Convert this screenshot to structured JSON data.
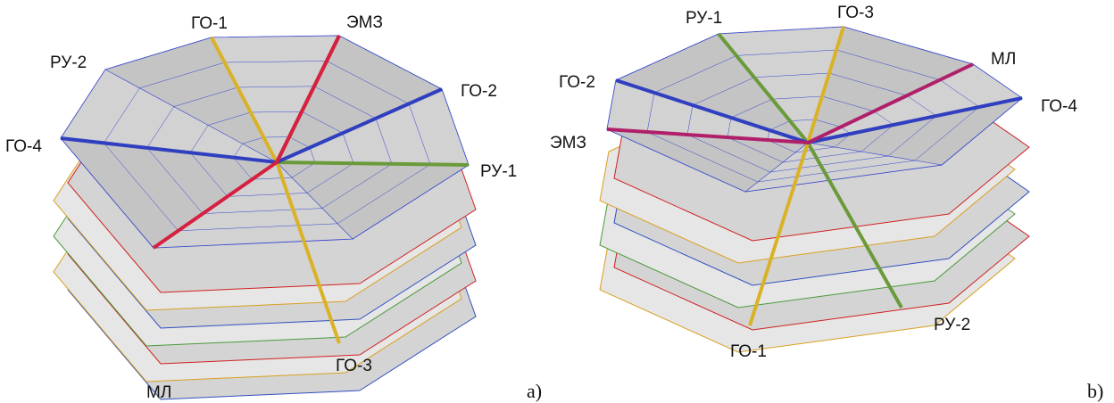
{
  "panels": [
    {
      "caption": "a)",
      "labels": [
        "ГО-1",
        "ЭМЗ",
        "РУ-2",
        "ГО-2",
        "ГО-4",
        "РУ-1",
        "МЛ",
        "ГО-3"
      ]
    },
    {
      "caption": "b)",
      "labels": [
        "РУ-1",
        "ГО-3",
        "МЛ",
        "ГО-2",
        "ГО-4",
        "ЭМЗ",
        "РУ-2",
        "ГО-1"
      ]
    }
  ]
}
